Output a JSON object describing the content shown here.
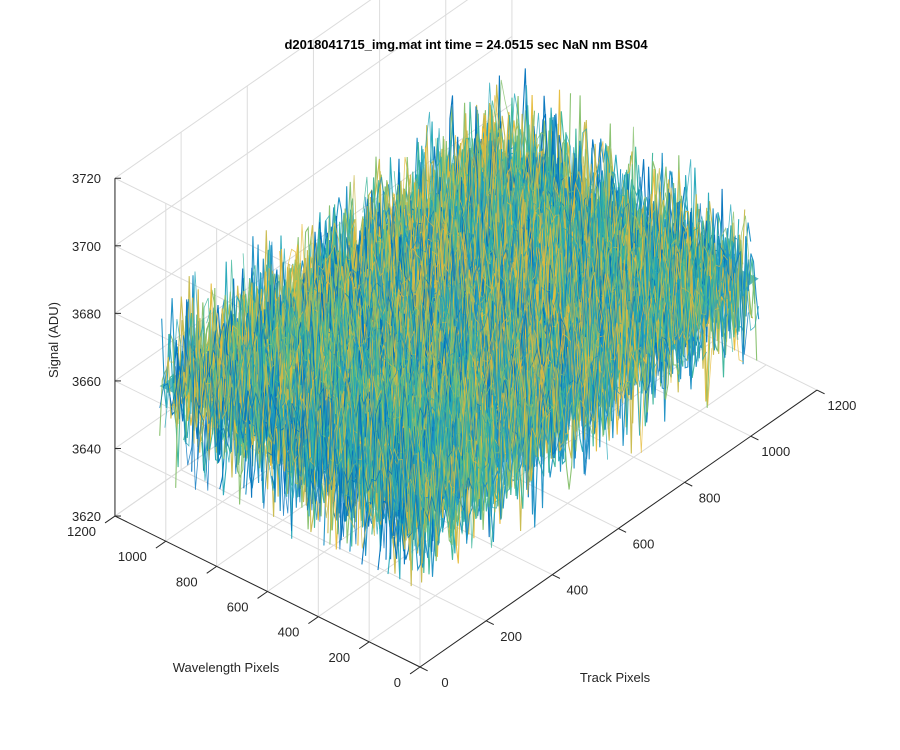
{
  "chart_data": {
    "type": "surface",
    "title": "d2018041715_img.mat int time = 24.0515 sec   NaN nm BS04",
    "xlabel": "Track Pixels",
    "ylabel": "Wavelength Pixels",
    "zlabel": "Signal (ADU)",
    "xlim": [
      0,
      1200
    ],
    "ylim": [
      0,
      1200
    ],
    "zlim": [
      3620,
      3720
    ],
    "xticks": [
      0,
      200,
      400,
      600,
      800,
      1000,
      1200
    ],
    "yticks": [
      0,
      200,
      400,
      600,
      800,
      1000,
      1200
    ],
    "zticks": [
      3620,
      3640,
      3660,
      3680,
      3700,
      3720
    ],
    "data_extent": {
      "x": [
        0,
        1024
      ],
      "y": [
        0,
        1024
      ]
    },
    "mean_signal": 3665,
    "noise_range": [
      3640,
      3705
    ],
    "grid": true,
    "colormap": [
      "#0072BD",
      "#1a8fc4",
      "#23a6b8",
      "#3cb59a",
      "#86c06c",
      "#c8b94a",
      "#e6bc3a"
    ]
  }
}
